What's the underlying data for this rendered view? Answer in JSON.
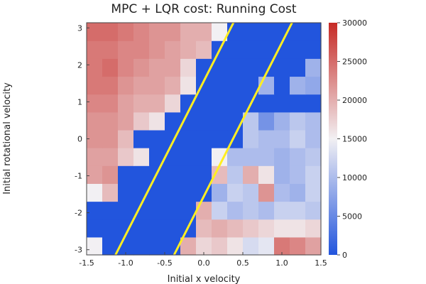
{
  "chart_data": {
    "type": "heatmap",
    "title": "MPC + LQR cost: Running Cost",
    "xlabel": "Initial x velocity",
    "ylabel": "Initial rotational velocity",
    "xlim": [
      -1.5,
      1.5
    ],
    "ylim": [
      -3.14,
      3.14
    ],
    "x_ticks": [
      -1.5,
      -1.0,
      -0.5,
      0.0,
      0.5,
      1.0,
      1.5
    ],
    "x_tick_labels": [
      "-1.5",
      "-1.0",
      "-0.5",
      "0.0",
      "0.5",
      "1.0",
      "1.5"
    ],
    "y_ticks": [
      -3,
      -2,
      -1,
      0,
      1,
      2,
      3
    ],
    "y_tick_labels": [
      "-3",
      "-2",
      "-1",
      "0",
      "1",
      "2",
      "3"
    ],
    "colorbar": {
      "min": 0,
      "max": 30000,
      "ticks": [
        0,
        5000,
        10000,
        15000,
        20000,
        25000,
        30000
      ],
      "tick_labels": [
        "0",
        "5000",
        "10000",
        "15000",
        "20000",
        "25000",
        "30000"
      ],
      "colors": [
        "#2255dd",
        "#f2f0f3",
        "#c62a25"
      ]
    },
    "grid": {
      "nx": 15,
      "ny": 13
    },
    "x": [
      -1.4,
      -1.2,
      -1.0,
      -0.8,
      -0.6,
      -0.4,
      -0.2,
      0.0,
      0.2,
      0.4,
      0.6,
      0.8,
      1.0,
      1.2,
      1.4
    ],
    "y": [
      -3.02,
      -2.51,
      -2.01,
      -1.51,
      -1.01,
      -0.5,
      0.0,
      0.5,
      1.01,
      1.51,
      2.01,
      2.51,
      3.02
    ],
    "values": [
      [
        15000,
        0,
        0,
        0,
        0,
        0,
        20000,
        17000,
        18000,
        16000,
        13000,
        14000,
        24000,
        23000,
        21000
      ],
      [
        0,
        0,
        0,
        0,
        0,
        0,
        0,
        19000,
        20000,
        19000,
        18000,
        17000,
        16000,
        16000,
        17000
      ],
      [
        0,
        0,
        0,
        0,
        0,
        0,
        0,
        20000,
        12000,
        10000,
        11000,
        10000,
        12000,
        12000,
        11000
      ],
      [
        15000,
        19000,
        0,
        0,
        0,
        0,
        0,
        0,
        9000,
        12000,
        11000,
        22000,
        10000,
        9000,
        12000
      ],
      [
        21000,
        22000,
        0,
        0,
        0,
        0,
        0,
        0,
        19000,
        11000,
        20000,
        16000,
        9000,
        10000,
        12000
      ],
      [
        21000,
        21000,
        18000,
        16000,
        0,
        0,
        0,
        0,
        15000,
        10000,
        10000,
        10000,
        9000,
        10000,
        11000
      ],
      [
        22000,
        22000,
        19000,
        0,
        0,
        0,
        0,
        0,
        0,
        0,
        11000,
        10000,
        10000,
        12000,
        10000
      ],
      [
        22000,
        22000,
        21000,
        18000,
        16000,
        0,
        0,
        0,
        0,
        0,
        11000,
        6000,
        9000,
        11000,
        10000
      ],
      [
        23000,
        23000,
        21000,
        20000,
        20000,
        17000,
        0,
        0,
        0,
        0,
        0,
        0,
        0,
        0,
        0
      ],
      [
        24000,
        24000,
        22000,
        21000,
        21000,
        20000,
        16000,
        0,
        0,
        0,
        0,
        9000,
        0,
        9000,
        8000
      ],
      [
        24000,
        25000,
        23000,
        22000,
        21000,
        21000,
        17000,
        0,
        0,
        0,
        0,
        0,
        0,
        0,
        9000
      ],
      [
        24000,
        24000,
        23000,
        23000,
        22000,
        21000,
        20000,
        19000,
        0,
        0,
        0,
        0,
        0,
        0,
        0
      ],
      [
        25000,
        25000,
        24000,
        23000,
        22000,
        22000,
        20000,
        20000,
        15000,
        0,
        0,
        0,
        0,
        0,
        0
      ]
    ],
    "lines": [
      {
        "color": "#ffee22",
        "points": [
          [
            -1.13,
            -3.14
          ],
          [
            0.38,
            3.14
          ]
        ]
      },
      {
        "color": "#ffee22",
        "points": [
          [
            -0.38,
            -3.14
          ],
          [
            1.13,
            3.14
          ]
        ]
      }
    ]
  }
}
